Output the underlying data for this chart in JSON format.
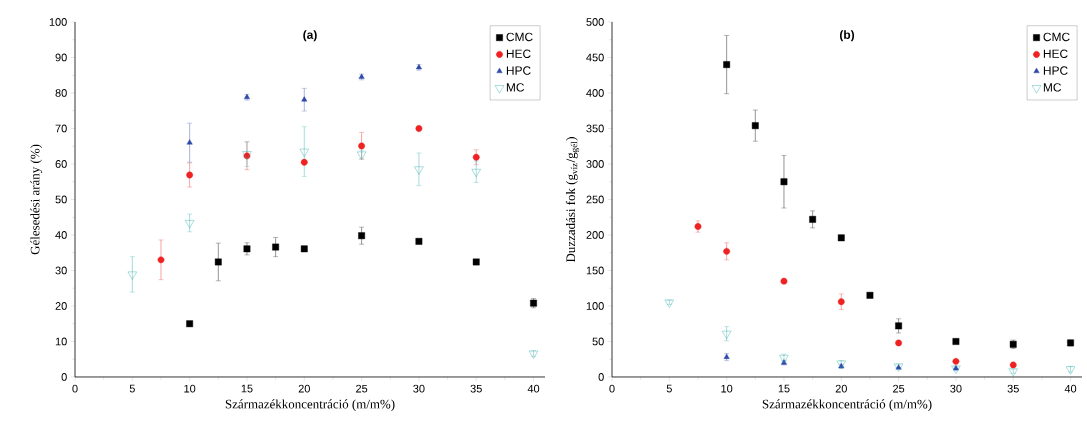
{
  "chart_data": [
    {
      "type": "scatter",
      "title": "**(a)**",
      "xlabel": "Származékkoncentráció (m/m%)",
      "ylabel": "Gélesedési arány (%)",
      "xlim": [
        0,
        41
      ],
      "ylim": [
        0,
        100
      ],
      "xticks": [
        0,
        5,
        10,
        15,
        20,
        25,
        30,
        35,
        40
      ],
      "yticks": [
        0,
        10,
        20,
        30,
        40,
        50,
        60,
        70,
        80,
        90,
        100
      ],
      "grid": false,
      "legend": "top right",
      "series": [
        {
          "name": "CMC",
          "color": "#000000",
          "marker": "square",
          "x": [
            10,
            12.5,
            15,
            17.5,
            20,
            25,
            30,
            35,
            40
          ],
          "values": [
            15,
            32.4,
            36.1,
            36.6,
            36.1,
            39.8,
            38.2,
            32.4,
            20.8
          ],
          "errors": [
            null,
            5.3,
            1.7,
            2.7,
            null,
            2.4,
            null,
            null,
            1.3
          ]
        },
        {
          "name": "HEC",
          "color": "#ee2222",
          "marker": "circle",
          "x": [
            7.5,
            10,
            15,
            20,
            25,
            30,
            35
          ],
          "values": [
            33,
            56.9,
            62.3,
            60.5,
            65.1,
            70,
            61.9
          ],
          "errors": [
            5.6,
            3.4,
            3.9,
            null,
            3.8,
            null,
            2.1
          ]
        },
        {
          "name": "HPC",
          "color": "#2e4aa8",
          "marker": "triangle",
          "x": [
            10,
            15,
            20,
            25,
            30
          ],
          "values": [
            66,
            78.8,
            78.1,
            84.5,
            87.2
          ],
          "errors": [
            5.5,
            0.8,
            3.2,
            0.8,
            0.8
          ]
        },
        {
          "name": "MC",
          "color": "#2aa8a8",
          "marker": "triangle-down",
          "x": [
            5,
            10,
            15,
            20,
            25,
            30,
            35,
            40
          ],
          "values": [
            28.9,
            43.4,
            62.8,
            63.5,
            62.7,
            58.5,
            57.8,
            6.6
          ],
          "errors": [
            5,
            2.5,
            3.5,
            7,
            1.2,
            4.6,
            3,
            0.8
          ]
        }
      ]
    },
    {
      "type": "scatter",
      "title": "**(b)**",
      "xlabel": "Származékkoncentráció (m/m%)",
      "ylabel": "Duzzadási fok (g$_{víz}$/g$_{gél}$)",
      "xlim": [
        0,
        41
      ],
      "ylim": [
        0,
        500
      ],
      "xticks": [
        0,
        5,
        10,
        15,
        20,
        25,
        30,
        35,
        40
      ],
      "yticks": [
        0,
        50,
        100,
        150,
        200,
        250,
        300,
        350,
        400,
        450,
        500
      ],
      "grid": false,
      "legend": "top right",
      "series": [
        {
          "name": "CMC",
          "color": "#000000",
          "marker": "square",
          "x": [
            10,
            12.5,
            15,
            17.5,
            20,
            22.5,
            25,
            30,
            35,
            40
          ],
          "values": [
            440,
            354,
            275,
            222,
            196,
            115,
            72,
            50,
            46,
            48
          ],
          "errors": [
            41,
            22,
            37,
            12,
            null,
            null,
            10,
            null,
            6,
            4
          ]
        },
        {
          "name": "HEC",
          "color": "#ee2222",
          "marker": "circle",
          "x": [
            7.5,
            10,
            15,
            20,
            25,
            30,
            35
          ],
          "values": [
            212,
            177,
            135,
            106,
            48,
            22,
            17
          ],
          "errors": [
            8,
            12,
            3,
            11,
            null,
            null,
            null
          ]
        },
        {
          "name": "HPC",
          "color": "#2e4aa8",
          "marker": "triangle",
          "x": [
            10,
            15,
            20,
            25,
            30
          ],
          "values": [
            28,
            20,
            15,
            13,
            12
          ],
          "errors": [
            5,
            3,
            3,
            null,
            null
          ]
        },
        {
          "name": "MC",
          "color": "#2aa8a8",
          "marker": "triangle-down",
          "x": [
            5,
            10,
            15,
            20,
            25,
            30,
            35,
            40
          ],
          "values": [
            105,
            61,
            27,
            19,
            15,
            12,
            8,
            11
          ],
          "errors": [
            3,
            10,
            5,
            4,
            3,
            3,
            3,
            4
          ]
        }
      ]
    }
  ]
}
